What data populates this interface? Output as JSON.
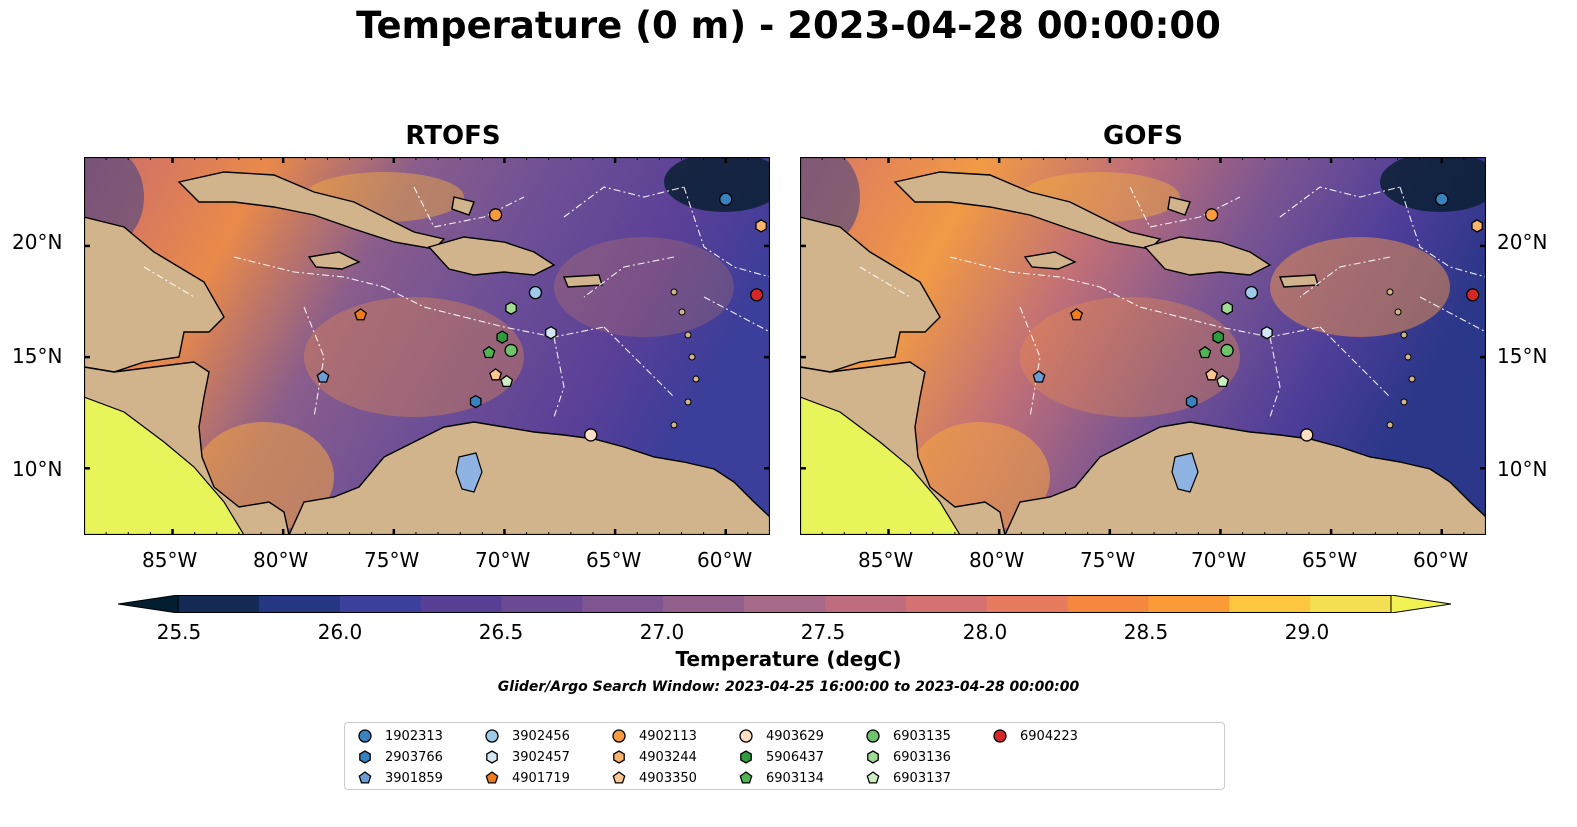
{
  "title": "Temperature (0 m) - 2023-04-28 00:00:00",
  "panels": [
    {
      "title": "RTOFS"
    },
    {
      "title": "GOFS"
    }
  ],
  "lon_ticks": [
    "85°W",
    "80°W",
    "75°W",
    "70°W",
    "65°W",
    "60°W"
  ],
  "lat_ticks": [
    "20°N",
    "15°N",
    "10°N"
  ],
  "colorbar": {
    "label": "Temperature (degC)",
    "ticks": [
      "25.5",
      "26.0",
      "26.5",
      "27.0",
      "27.5",
      "28.0",
      "28.5",
      "29.0"
    ],
    "colors": [
      "#031e30",
      "#142a55",
      "#253782",
      "#3c3f9b",
      "#573f95",
      "#6b4a93",
      "#7f5591",
      "#93608d",
      "#a86a89",
      "#be6c7e",
      "#d37271",
      "#e77b5d",
      "#f5883f",
      "#fa9b37",
      "#fcc63e",
      "#f5df53",
      "#f2f353"
    ]
  },
  "search_window": "Glider/Argo Search Window: 2023-04-25 16:00:00 to 2023-04-28 00:00:00",
  "legend": [
    {
      "id": "1902313",
      "shape": "circle",
      "color": "#3a81bf"
    },
    {
      "id": "2903766",
      "shape": "hexagon",
      "color": "#3a81bf"
    },
    {
      "id": "3901859",
      "shape": "pentagon",
      "color": "#6c9ed4"
    },
    {
      "id": "3902456",
      "shape": "circle",
      "color": "#9fcae8"
    },
    {
      "id": "3902457",
      "shape": "hexagon",
      "color": "#d4e6f4"
    },
    {
      "id": "4901719",
      "shape": "pentagon",
      "color": "#f07b1a"
    },
    {
      "id": "4902113",
      "shape": "circle",
      "color": "#f89a3d"
    },
    {
      "id": "4903244",
      "shape": "hexagon",
      "color": "#fbb46b"
    },
    {
      "id": "4903350",
      "shape": "pentagon",
      "color": "#fcc690"
    },
    {
      "id": "4903629",
      "shape": "circle",
      "color": "#fde0c3"
    },
    {
      "id": "5906437",
      "shape": "hexagon",
      "color": "#2e9b3c"
    },
    {
      "id": "6903134",
      "shape": "pentagon",
      "color": "#4db552"
    },
    {
      "id": "6903135",
      "shape": "circle",
      "color": "#6fc46b"
    },
    {
      "id": "6903136",
      "shape": "hexagon",
      "color": "#9fdb93"
    },
    {
      "id": "6903137",
      "shape": "pentagon",
      "color": "#cceec4"
    },
    {
      "id": "6904223",
      "shape": "circle",
      "color": "#d62728"
    }
  ],
  "map": {
    "lon_range": [
      -89,
      -58
    ],
    "lat_range": [
      7,
      24
    ],
    "land_color": "#d2b48c",
    "pacific_color": "#e8f55a",
    "lake_color": "#8fb4e3",
    "floats": [
      {
        "id": "1902313",
        "lon": -60.0,
        "lat": 22.1
      },
      {
        "id": "6904223",
        "lon": -58.6,
        "lat": 17.8
      },
      {
        "id": "4903244",
        "lon": -58.4,
        "lat": 20.9
      },
      {
        "id": "4902113",
        "lon": -70.4,
        "lat": 21.4
      },
      {
        "id": "3902456",
        "lon": -68.6,
        "lat": 17.9
      },
      {
        "id": "6903136",
        "lon": -69.7,
        "lat": 17.2
      },
      {
        "id": "3902457",
        "lon": -67.9,
        "lat": 16.1
      },
      {
        "id": "5906437",
        "lon": -70.1,
        "lat": 15.9
      },
      {
        "id": "6903135",
        "lon": -69.7,
        "lat": 15.3
      },
      {
        "id": "6903134",
        "lon": -70.7,
        "lat": 15.2
      },
      {
        "id": "4903350",
        "lon": -70.4,
        "lat": 14.2
      },
      {
        "id": "6903137",
        "lon": -69.9,
        "lat": 13.9
      },
      {
        "id": "3901859",
        "lon": -78.2,
        "lat": 14.1
      },
      {
        "id": "4901719",
        "lon": -76.5,
        "lat": 16.9
      },
      {
        "id": "2903766",
        "lon": -71.3,
        "lat": 13.0
      },
      {
        "id": "4903629",
        "lon": -66.1,
        "lat": 11.5
      }
    ]
  }
}
